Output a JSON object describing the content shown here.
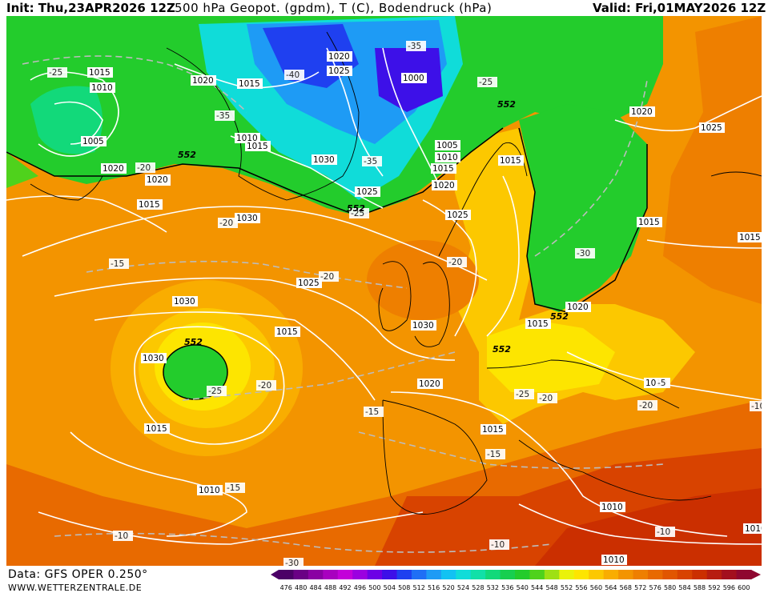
{
  "header": {
    "init": "Init: Thu,23APR2026 12Z",
    "title": "500 hPa Geopot. (gpdm), T (C), Bodendruck (hPa)",
    "valid": "Valid: Fri,01MAY2026 12Z"
  },
  "footer": {
    "source": "Data: GFS OPER 0.250°",
    "site": "WWW.WETTERZENTRALE.DE"
  },
  "scale": {
    "ticks": [
      "476",
      "480",
      "484",
      "488",
      "492",
      "496",
      "500",
      "504",
      "508",
      "512",
      "516",
      "520",
      "524",
      "528",
      "532",
      "536",
      "540",
      "544",
      "548",
      "552",
      "556",
      "560",
      "564",
      "568",
      "572",
      "576",
      "580",
      "584",
      "588",
      "592",
      "596",
      "600"
    ],
    "colors": [
      "#4b0067",
      "#6a0085",
      "#8a00a3",
      "#a800bf",
      "#c300d9",
      "#9b00e0",
      "#6d00e6",
      "#3d10e8",
      "#1f40f0",
      "#1f6ff5",
      "#1e9bf5",
      "#12c2f2",
      "#10dcd9",
      "#11e0a8",
      "#12d97a",
      "#17cf4f",
      "#23cc2c",
      "#4fd21c",
      "#9ee014",
      "#eaf20a",
      "#fde500",
      "#fcc800",
      "#f9ad00",
      "#f39400",
      "#ee7f00",
      "#e86a00",
      "#e15600",
      "#d84300",
      "#cb2f00",
      "#b71d10",
      "#a30f1e",
      "#8f0730"
    ]
  },
  "map": {
    "pressure_labels": [
      {
        "t": "1015",
        "c": "w"
      },
      {
        "t": "1010",
        "c": "w"
      },
      {
        "t": "1005",
        "c": "w"
      },
      {
        "t": "1020",
        "c": "w"
      },
      {
        "t": "1015",
        "c": "w"
      },
      {
        "t": "1020",
        "c": "w"
      },
      {
        "t": "1025",
        "c": "w"
      },
      {
        "t": "1000",
        "c": "w"
      },
      {
        "t": "1010",
        "c": "w"
      },
      {
        "t": "1015",
        "c": "w"
      },
      {
        "t": "1030",
        "c": "w"
      },
      {
        "t": "1025",
        "c": "w"
      },
      {
        "t": "1005",
        "c": "w"
      },
      {
        "t": "1010",
        "c": "w"
      },
      {
        "t": "1015",
        "c": "w"
      },
      {
        "t": "1020",
        "c": "w"
      },
      {
        "t": "1025",
        "c": "w"
      },
      {
        "t": "1020",
        "c": "w"
      },
      {
        "t": "1020",
        "c": "w"
      },
      {
        "t": "1015",
        "c": "w"
      },
      {
        "t": "1015",
        "c": "w"
      },
      {
        "t": "1025",
        "c": "w"
      },
      {
        "t": "1030",
        "c": "w"
      },
      {
        "t": "1030",
        "c": "w"
      },
      {
        "t": "1025",
        "c": "w"
      },
      {
        "t": "1030",
        "c": "w"
      },
      {
        "t": "1015",
        "c": "w"
      },
      {
        "t": "1030",
        "c": "w"
      },
      {
        "t": "1020",
        "c": "w"
      },
      {
        "t": "1020",
        "c": "w"
      },
      {
        "t": "1025",
        "c": "w"
      },
      {
        "t": "1015",
        "c": "w"
      },
      {
        "t": "1010",
        "c": "w"
      },
      {
        "t": "1015",
        "c": "w"
      },
      {
        "t": "1015",
        "c": "w"
      },
      {
        "t": "1010",
        "c": "w"
      },
      {
        "t": "1015",
        "c": "w"
      },
      {
        "t": "1010",
        "c": "w"
      },
      {
        "t": "1010",
        "c": "w"
      },
      {
        "t": "1010",
        "c": "w"
      },
      {
        "t": "1015",
        "c": "w"
      },
      {
        "t": "1020",
        "c": "w"
      }
    ],
    "temp_labels": [
      "-25",
      "-40",
      "-35",
      "-25",
      "-35",
      "-20",
      "-20",
      "-35",
      "-30",
      "-25",
      "-20",
      "-15",
      "-20",
      "-20",
      "-25",
      "-20",
      "-15",
      "-15",
      "-15",
      "-10",
      "-10",
      "-10",
      "-10",
      "-30",
      "-20",
      "-25",
      "-5"
    ],
    "geopot_labels": [
      "552",
      "552",
      "552",
      "552",
      "552",
      "552"
    ]
  }
}
